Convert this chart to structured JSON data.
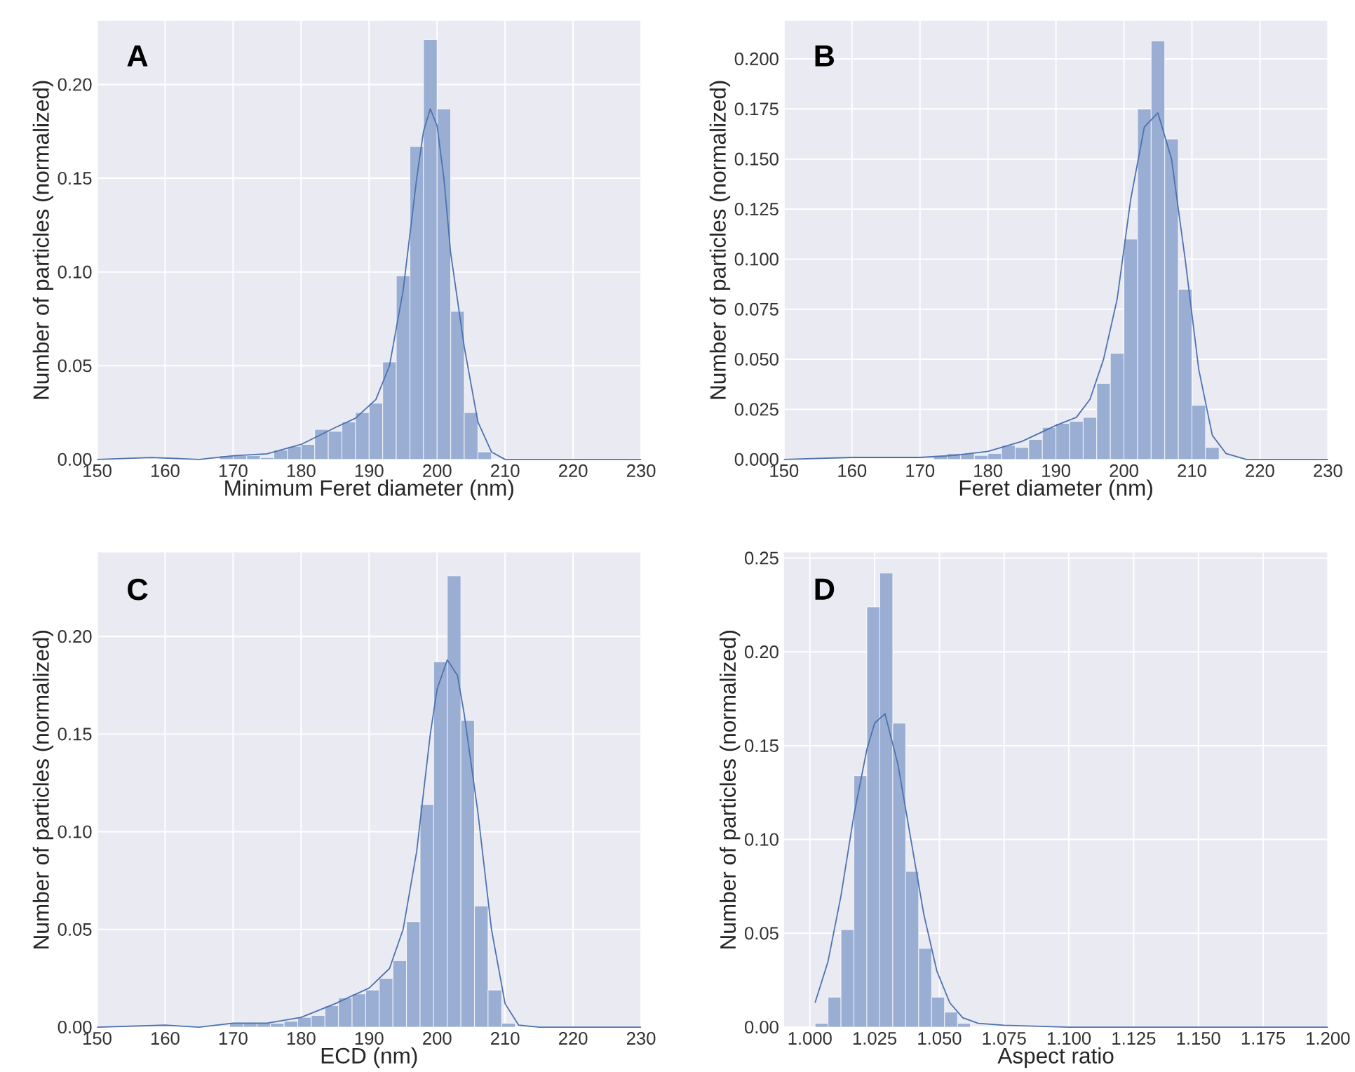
{
  "chart_data": [
    {
      "type": "histogram",
      "xlabel": "Minimum Feret diameter (nm)",
      "ylabel": "Number of particles (normalized)",
      "annotations": [
        "A"
      ],
      "grid": true,
      "xlim": [
        150,
        230
      ],
      "ylim": [
        0,
        0.234
      ],
      "xticks": [
        150,
        160,
        170,
        180,
        190,
        200,
        210,
        220,
        230
      ],
      "yticks": [
        {
          "value": 0,
          "label": "0.00"
        },
        {
          "value": 0.05,
          "label": "0.05"
        },
        {
          "value": 0.1,
          "label": "0.10"
        },
        {
          "value": 0.15,
          "label": "0.15"
        },
        {
          "value": 0.2,
          "label": "0.20"
        }
      ],
      "series": [
        {
          "color": "#9aaed3",
          "bins": [
            168,
            170,
            172,
            174,
            176,
            178,
            180,
            182,
            184,
            186,
            188,
            190,
            192,
            194,
            196,
            198,
            200,
            202,
            204,
            206,
            208
          ],
          "values": [
            0.002,
            0.002,
            0.002,
            0.001,
            0.005,
            0.007,
            0.008,
            0.016,
            0.015,
            0.02,
            0.025,
            0.03,
            0.052,
            0.098,
            0.167,
            0.224,
            0.187,
            0.079,
            0.025,
            0.004
          ]
        },
        {
          "type": "line",
          "color": "#4c72b0",
          "x": [
            150,
            158,
            165,
            170,
            175,
            180,
            185,
            188,
            191,
            193,
            195,
            197,
            198,
            199,
            200,
            201,
            202,
            204,
            206,
            208,
            210,
            215,
            230
          ],
          "values": [
            0,
            0.001,
            0,
            0.002,
            0.003,
            0.008,
            0.017,
            0.022,
            0.032,
            0.05,
            0.09,
            0.15,
            0.175,
            0.187,
            0.178,
            0.15,
            0.11,
            0.06,
            0.02,
            0.004,
            0,
            0,
            0
          ]
        }
      ]
    },
    {
      "type": "histogram",
      "xlabel": "Feret diameter (nm)",
      "ylabel": "Number of particles (normalized)",
      "annotations": [
        "B"
      ],
      "grid": true,
      "xlim": [
        150,
        230
      ],
      "ylim": [
        0,
        0.219
      ],
      "xticks": [
        150,
        160,
        170,
        180,
        190,
        200,
        210,
        220,
        230
      ],
      "yticks": [
        {
          "value": 0,
          "label": "0.000"
        },
        {
          "value": 0.025,
          "label": "0.025"
        },
        {
          "value": 0.05,
          "label": "0.050"
        },
        {
          "value": 0.075,
          "label": "0.075"
        },
        {
          "value": 0.1,
          "label": "0.100"
        },
        {
          "value": 0.125,
          "label": "0.125"
        },
        {
          "value": 0.15,
          "label": "0.150"
        },
        {
          "value": 0.175,
          "label": "0.175"
        },
        {
          "value": 0.2,
          "label": "0.200"
        }
      ],
      "series": [
        {
          "color": "#9aaed3",
          "bins": [
            172,
            174,
            176,
            178,
            180,
            182,
            184,
            186,
            188,
            190,
            192,
            194,
            196,
            198,
            200,
            202,
            204,
            206,
            208,
            210,
            212,
            214
          ],
          "values": [
            0.002,
            0.003,
            0.003,
            0.002,
            0.003,
            0.007,
            0.006,
            0.01,
            0.016,
            0.018,
            0.019,
            0.021,
            0.038,
            0.053,
            0.11,
            0.175,
            0.209,
            0.16,
            0.085,
            0.027,
            0.006
          ]
        },
        {
          "type": "line",
          "color": "#4c72b0",
          "x": [
            150,
            160,
            170,
            175,
            180,
            185,
            190,
            193,
            195,
            197,
            199,
            201,
            203,
            205,
            207,
            209,
            211,
            213,
            215,
            218,
            230
          ],
          "values": [
            0,
            0.001,
            0.001,
            0.002,
            0.004,
            0.009,
            0.017,
            0.021,
            0.03,
            0.05,
            0.08,
            0.13,
            0.166,
            0.173,
            0.15,
            0.1,
            0.045,
            0.012,
            0.003,
            0,
            0
          ]
        }
      ]
    },
    {
      "type": "histogram",
      "xlabel": "ECD (nm)",
      "ylabel": "Number of particles (normalized)",
      "annotations": [
        "C"
      ],
      "grid": true,
      "xlim": [
        150,
        230
      ],
      "ylim": [
        0,
        0.243
      ],
      "xticks": [
        150,
        160,
        170,
        180,
        190,
        200,
        210,
        220,
        230
      ],
      "yticks": [
        {
          "value": 0,
          "label": "0.00"
        },
        {
          "value": 0.05,
          "label": "0.05"
        },
        {
          "value": 0.1,
          "label": "0.10"
        },
        {
          "value": 0.15,
          "label": "0.15"
        },
        {
          "value": 0.2,
          "label": "0.20"
        }
      ],
      "series": [
        {
          "color": "#9aaed3",
          "bins": [
            169.5,
            171.5,
            173.5,
            175.5,
            177.5,
            179.5,
            181.5,
            183.5,
            185.5,
            187.5,
            189.5,
            191.5,
            193.5,
            195.5,
            197.5,
            199.5,
            201.5,
            203.5,
            205.5,
            207.5,
            209.5,
            211.5
          ],
          "values": [
            0.002,
            0.002,
            0.002,
            0.002,
            0.003,
            0.005,
            0.006,
            0.011,
            0.015,
            0.017,
            0.019,
            0.025,
            0.034,
            0.054,
            0.114,
            0.187,
            0.231,
            0.157,
            0.062,
            0.019,
            0.002
          ]
        },
        {
          "type": "line",
          "color": "#4c72b0",
          "x": [
            150,
            160,
            165,
            170,
            175,
            180,
            185,
            190,
            193,
            195,
            197,
            199,
            200,
            201.5,
            203,
            204,
            206,
            208,
            210,
            212,
            215,
            230
          ],
          "values": [
            0,
            0.001,
            0,
            0.002,
            0.002,
            0.005,
            0.012,
            0.02,
            0.03,
            0.05,
            0.09,
            0.15,
            0.173,
            0.188,
            0.18,
            0.16,
            0.11,
            0.05,
            0.012,
            0.001,
            0,
            0
          ]
        }
      ]
    },
    {
      "type": "histogram",
      "xlabel": "Aspect ratio",
      "ylabel": "Number of particles (normalized)",
      "annotations": [
        "D"
      ],
      "grid": true,
      "xlim": [
        0.99,
        1.2
      ],
      "ylim": [
        0,
        0.253
      ],
      "xticks": [
        {
          "value": 1,
          "label": "1.000"
        },
        {
          "value": 1.025,
          "label": "1.025"
        },
        {
          "value": 1.05,
          "label": "1.050"
        },
        {
          "value": 1.075,
          "label": "1.075"
        },
        {
          "value": 1.1,
          "label": "1.100"
        },
        {
          "value": 1.125,
          "label": "1.125"
        },
        {
          "value": 1.15,
          "label": "1.150"
        },
        {
          "value": 1.175,
          "label": "1.175"
        },
        {
          "value": 1.2,
          "label": "1.200"
        }
      ],
      "yticks": [
        {
          "value": 0,
          "label": "0.00"
        },
        {
          "value": 0.05,
          "label": "0.05"
        },
        {
          "value": 0.1,
          "label": "0.10"
        },
        {
          "value": 0.15,
          "label": "0.15"
        },
        {
          "value": 0.2,
          "label": "0.20"
        },
        {
          "value": 0.25,
          "label": "0.25"
        }
      ],
      "series": [
        {
          "color": "#9aaed3",
          "bins": [
            1.002,
            1.007,
            1.012,
            1.017,
            1.022,
            1.027,
            1.032,
            1.037,
            1.042,
            1.047,
            1.052,
            1.057,
            1.062
          ],
          "values": [
            0.002,
            0.016,
            0.052,
            0.134,
            0.224,
            0.242,
            0.162,
            0.083,
            0.042,
            0.016,
            0.008,
            0.002
          ]
        },
        {
          "type": "line",
          "color": "#4c72b0",
          "x": [
            1.002,
            1.007,
            1.012,
            1.017,
            1.022,
            1.025,
            1.029,
            1.034,
            1.039,
            1.044,
            1.049,
            1.054,
            1.059,
            1.065,
            1.075,
            1.1,
            1.2
          ],
          "values": [
            0.013,
            0.035,
            0.07,
            0.113,
            0.148,
            0.162,
            0.167,
            0.14,
            0.1,
            0.06,
            0.03,
            0.013,
            0.005,
            0.002,
            0.001,
            0,
            0
          ]
        }
      ]
    }
  ]
}
